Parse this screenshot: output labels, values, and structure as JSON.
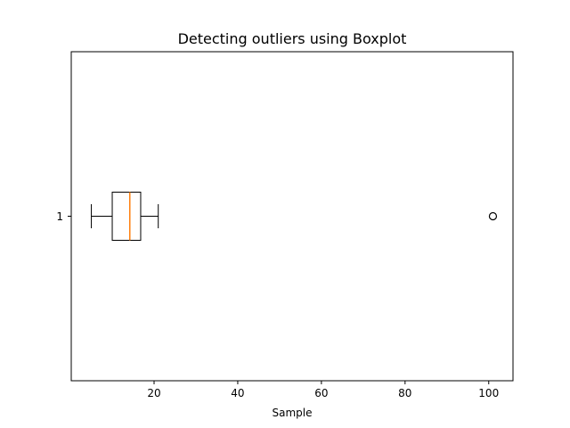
{
  "chart_data": {
    "type": "boxplot",
    "orientation": "horizontal",
    "title": "Detecting outliers using Boxplot",
    "xlabel": "Sample",
    "ylabel": "",
    "xlim": [
      0.2,
      105.8
    ],
    "xticks": [
      20,
      40,
      60,
      80,
      100
    ],
    "categories": [
      "1"
    ],
    "boxes": [
      {
        "category": "1",
        "whisker_low": 5,
        "q1": 10,
        "median": 14.2,
        "q3": 16.8,
        "whisker_high": 21,
        "outliers": [
          101
        ]
      }
    ],
    "colors": {
      "box": "#000000",
      "median": "#ff7f0e",
      "outlier": "#000000"
    },
    "grid": false,
    "legend": "none"
  }
}
